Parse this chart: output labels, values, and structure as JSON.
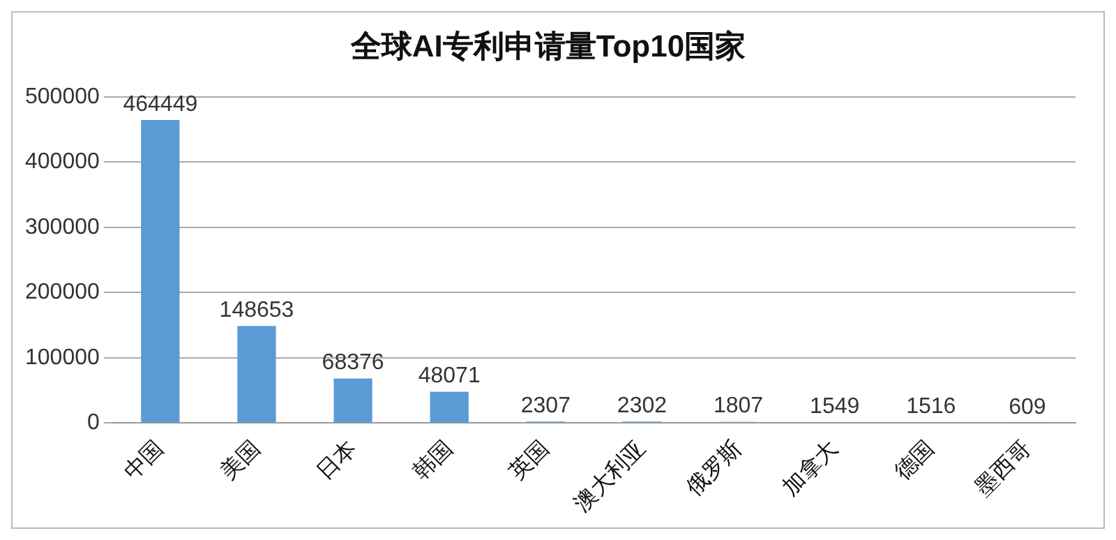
{
  "chart_data": {
    "type": "bar",
    "title": "全球AI专利申请量Top10国家",
    "categories": [
      "中国",
      "美国",
      "日本",
      "韩国",
      "英国",
      "澳大利亚",
      "俄罗斯",
      "加拿大",
      "德国",
      "墨西哥"
    ],
    "values": [
      464449,
      148653,
      68376,
      48071,
      2307,
      2302,
      1807,
      1549,
      1516,
      609
    ],
    "color": "#5b9bd5",
    "ylim": [
      0,
      500000
    ],
    "yticks": [
      0,
      100000,
      200000,
      300000,
      400000,
      500000
    ],
    "grid": "y",
    "data_labels": true
  }
}
